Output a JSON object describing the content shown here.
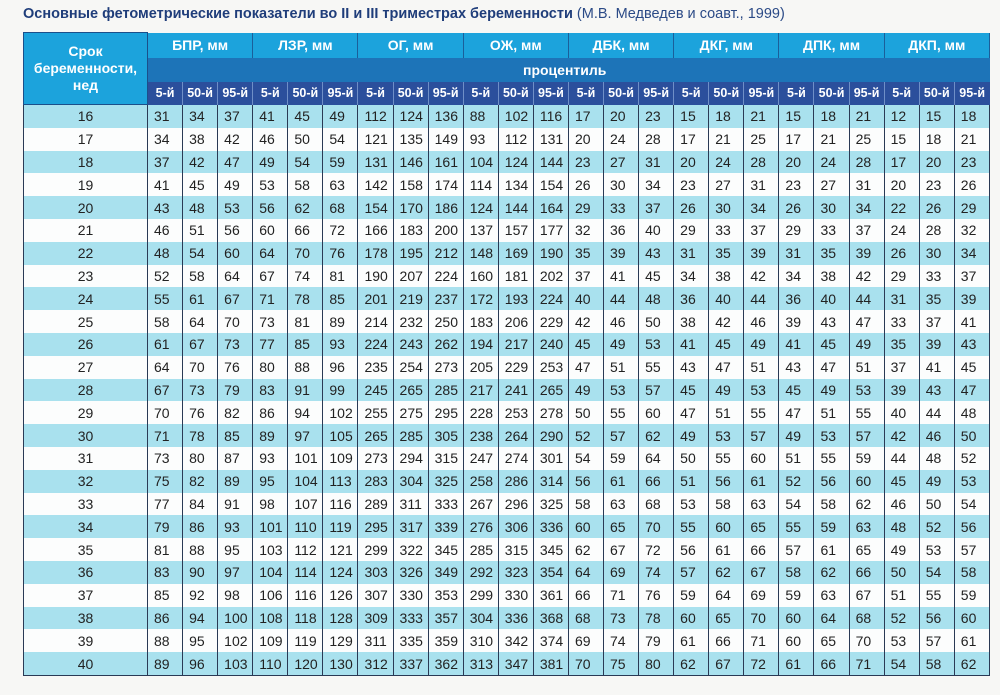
{
  "title": {
    "main": "Основные фетометрические показатели во II и III триместрах беременности",
    "source": "(М.В. Медведев и соавт., 1999)"
  },
  "header": {
    "term": "Срок беременности, нед",
    "percentile": "процентиль",
    "groups": [
      "БПР, мм",
      "ЛЗР, мм",
      "ОГ, мм",
      "ОЖ, мм",
      "ДБК, мм",
      "ДКГ, мм",
      "ДПК, мм",
      "ДКП, мм"
    ],
    "sub": [
      "5-й",
      "50-й",
      "95-й"
    ]
  },
  "colors": {
    "header_light": "#1ca3dc",
    "header_mid": "#1d74b8",
    "header_dark": "#2b4f9c",
    "stripe": "#a9e1ee",
    "title": "#1f3d7a"
  },
  "rows": [
    {
      "week": "16",
      "values": [
        31,
        34,
        37,
        41,
        45,
        49,
        112,
        124,
        136,
        88,
        102,
        116,
        17,
        20,
        23,
        15,
        18,
        21,
        15,
        18,
        21,
        12,
        15,
        18
      ]
    },
    {
      "week": "17",
      "values": [
        34,
        38,
        42,
        46,
        50,
        54,
        121,
        135,
        149,
        93,
        112,
        131,
        20,
        24,
        28,
        17,
        21,
        25,
        17,
        21,
        25,
        15,
        18,
        21
      ]
    },
    {
      "week": "18",
      "values": [
        37,
        42,
        47,
        49,
        54,
        59,
        131,
        146,
        161,
        104,
        124,
        144,
        23,
        27,
        31,
        20,
        24,
        28,
        20,
        24,
        28,
        17,
        20,
        23
      ]
    },
    {
      "week": "19",
      "values": [
        41,
        45,
        49,
        53,
        58,
        63,
        142,
        158,
        174,
        114,
        134,
        154,
        26,
        30,
        34,
        23,
        27,
        31,
        23,
        27,
        31,
        20,
        23,
        26
      ]
    },
    {
      "week": "20",
      "values": [
        43,
        48,
        53,
        56,
        62,
        68,
        154,
        170,
        186,
        124,
        144,
        164,
        29,
        33,
        37,
        26,
        30,
        34,
        26,
        30,
        34,
        22,
        26,
        29
      ]
    },
    {
      "week": "21",
      "values": [
        46,
        51,
        56,
        60,
        66,
        72,
        166,
        183,
        200,
        137,
        157,
        177,
        32,
        36,
        40,
        29,
        33,
        37,
        29,
        33,
        37,
        24,
        28,
        32
      ]
    },
    {
      "week": "22",
      "values": [
        48,
        54,
        60,
        64,
        70,
        76,
        178,
        195,
        212,
        148,
        169,
        190,
        35,
        39,
        43,
        31,
        35,
        39,
        31,
        35,
        39,
        26,
        30,
        34
      ]
    },
    {
      "week": "23",
      "values": [
        52,
        58,
        64,
        67,
        74,
        81,
        190,
        207,
        224,
        160,
        181,
        202,
        37,
        41,
        45,
        34,
        38,
        42,
        34,
        38,
        42,
        29,
        33,
        37
      ]
    },
    {
      "week": "24",
      "values": [
        55,
        61,
        67,
        71,
        78,
        85,
        201,
        219,
        237,
        172,
        193,
        224,
        40,
        44,
        48,
        36,
        40,
        44,
        36,
        40,
        44,
        31,
        35,
        39
      ]
    },
    {
      "week": "25",
      "values": [
        58,
        64,
        70,
        73,
        81,
        89,
        214,
        232,
        250,
        183,
        206,
        229,
        42,
        46,
        50,
        38,
        42,
        46,
        39,
        43,
        47,
        33,
        37,
        41
      ]
    },
    {
      "week": "26",
      "values": [
        61,
        67,
        73,
        77,
        85,
        93,
        224,
        243,
        262,
        194,
        217,
        240,
        45,
        49,
        53,
        41,
        45,
        49,
        41,
        45,
        49,
        35,
        39,
        43
      ]
    },
    {
      "week": "27",
      "values": [
        64,
        70,
        76,
        80,
        88,
        96,
        235,
        254,
        273,
        205,
        229,
        253,
        47,
        51,
        55,
        43,
        47,
        51,
        43,
        47,
        51,
        37,
        41,
        45
      ]
    },
    {
      "week": "28",
      "values": [
        67,
        73,
        79,
        83,
        91,
        99,
        245,
        265,
        285,
        217,
        241,
        265,
        49,
        53,
        57,
        45,
        49,
        53,
        45,
        49,
        53,
        39,
        43,
        47
      ]
    },
    {
      "week": "29",
      "values": [
        70,
        76,
        82,
        86,
        94,
        102,
        255,
        275,
        295,
        228,
        253,
        278,
        50,
        55,
        60,
        47,
        51,
        55,
        47,
        51,
        55,
        40,
        44,
        48
      ]
    },
    {
      "week": "30",
      "values": [
        71,
        78,
        85,
        89,
        97,
        105,
        265,
        285,
        305,
        238,
        264,
        290,
        52,
        57,
        62,
        49,
        53,
        57,
        49,
        53,
        57,
        42,
        46,
        50
      ]
    },
    {
      "week": "31",
      "values": [
        73,
        80,
        87,
        93,
        101,
        109,
        273,
        294,
        315,
        247,
        274,
        301,
        54,
        59,
        64,
        50,
        55,
        60,
        51,
        55,
        59,
        44,
        48,
        52
      ]
    },
    {
      "week": "32",
      "values": [
        75,
        82,
        89,
        95,
        104,
        113,
        283,
        304,
        325,
        258,
        286,
        314,
        56,
        61,
        66,
        51,
        56,
        61,
        52,
        56,
        60,
        45,
        49,
        53
      ]
    },
    {
      "week": "33",
      "values": [
        77,
        84,
        91,
        98,
        107,
        116,
        289,
        311,
        333,
        267,
        296,
        325,
        58,
        63,
        68,
        53,
        58,
        63,
        54,
        58,
        62,
        46,
        50,
        54
      ]
    },
    {
      "week": "34",
      "values": [
        79,
        86,
        93,
        101,
        110,
        119,
        295,
        317,
        339,
        276,
        306,
        336,
        60,
        65,
        70,
        55,
        60,
        65,
        55,
        59,
        63,
        48,
        52,
        56
      ]
    },
    {
      "week": "35",
      "values": [
        81,
        88,
        95,
        103,
        112,
        121,
        299,
        322,
        345,
        285,
        315,
        345,
        62,
        67,
        72,
        56,
        61,
        66,
        57,
        61,
        65,
        49,
        53,
        57
      ]
    },
    {
      "week": "36",
      "values": [
        83,
        90,
        97,
        104,
        114,
        124,
        303,
        326,
        349,
        292,
        323,
        354,
        64,
        69,
        74,
        57,
        62,
        67,
        58,
        62,
        66,
        50,
        54,
        58
      ]
    },
    {
      "week": "37",
      "values": [
        85,
        92,
        98,
        106,
        116,
        126,
        307,
        330,
        353,
        299,
        330,
        361,
        66,
        71,
        76,
        59,
        64,
        69,
        59,
        63,
        67,
        51,
        55,
        59
      ]
    },
    {
      "week": "38",
      "values": [
        86,
        94,
        100,
        108,
        118,
        128,
        309,
        333,
        357,
        304,
        336,
        368,
        68,
        73,
        78,
        60,
        65,
        70,
        60,
        64,
        68,
        52,
        56,
        60
      ]
    },
    {
      "week": "39",
      "values": [
        88,
        95,
        102,
        109,
        119,
        129,
        311,
        335,
        359,
        310,
        342,
        374,
        69,
        74,
        79,
        61,
        66,
        71,
        60,
        65,
        70,
        53,
        57,
        61
      ]
    },
    {
      "week": "40",
      "values": [
        89,
        96,
        103,
        110,
        120,
        130,
        312,
        337,
        362,
        313,
        347,
        381,
        70,
        75,
        80,
        62,
        67,
        72,
        61,
        66,
        71,
        54,
        58,
        62
      ]
    }
  ]
}
